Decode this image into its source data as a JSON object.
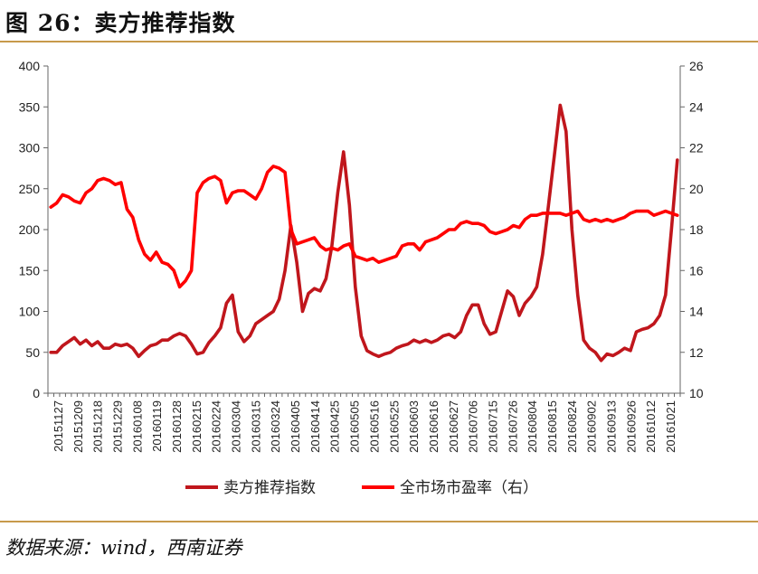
{
  "header": {
    "title": "图 26：卖方推荐指数"
  },
  "footer": {
    "source": "数据来源：wind，西南证券"
  },
  "colors": {
    "series1": "#c0161c",
    "series2": "#ff0000",
    "rule": "#c79a4b",
    "axis": "#666666"
  },
  "chart_data": {
    "type": "line",
    "title": "",
    "legend_position": "bottom",
    "grid": false,
    "x_tick_labels": [
      "20151127",
      "20151209",
      "20151218",
      "20151229",
      "20160108",
      "20160119",
      "20160128",
      "20160215",
      "20160224",
      "20160304",
      "20160315",
      "20160324",
      "20160405",
      "20160414",
      "20160425",
      "20160505",
      "20160516",
      "20160525",
      "20160603",
      "20160616",
      "20160627",
      "20160706",
      "20160715",
      "20160726",
      "20160804",
      "20160815",
      "20160824",
      "20160902",
      "20160913",
      "20160926",
      "20161012",
      "20161021"
    ],
    "y_left": {
      "min": 0,
      "max": 400,
      "ticks": [
        0,
        50,
        100,
        150,
        200,
        250,
        300,
        350,
        400
      ]
    },
    "y_right": {
      "min": 10,
      "max": 26,
      "ticks": [
        10,
        12,
        14,
        16,
        18,
        20,
        22,
        24,
        26
      ]
    },
    "series": [
      {
        "name": "卖方推荐指数",
        "axis": "left",
        "values": [
          [
            0,
            50
          ],
          [
            1,
            50
          ],
          [
            2,
            58
          ],
          [
            3,
            63
          ],
          [
            4,
            68
          ],
          [
            5,
            60
          ],
          [
            6,
            65
          ],
          [
            7,
            58
          ],
          [
            8,
            63
          ],
          [
            9,
            55
          ],
          [
            10,
            55
          ],
          [
            11,
            60
          ],
          [
            12,
            58
          ],
          [
            13,
            60
          ],
          [
            14,
            55
          ],
          [
            15,
            45
          ],
          [
            16,
            52
          ],
          [
            17,
            58
          ],
          [
            18,
            60
          ],
          [
            19,
            65
          ],
          [
            20,
            65
          ],
          [
            21,
            70
          ],
          [
            22,
            73
          ],
          [
            23,
            70
          ],
          [
            24,
            60
          ],
          [
            25,
            48
          ],
          [
            26,
            50
          ],
          [
            27,
            62
          ],
          [
            28,
            70
          ],
          [
            29,
            80
          ],
          [
            30,
            110
          ],
          [
            31,
            120
          ],
          [
            32,
            75
          ],
          [
            33,
            63
          ],
          [
            34,
            70
          ],
          [
            35,
            85
          ],
          [
            36,
            90
          ],
          [
            37,
            95
          ],
          [
            38,
            100
          ],
          [
            39,
            115
          ],
          [
            40,
            150
          ],
          [
            41,
            205
          ],
          [
            42,
            160
          ],
          [
            43,
            100
          ],
          [
            44,
            122
          ],
          [
            45,
            128
          ],
          [
            46,
            125
          ],
          [
            47,
            140
          ],
          [
            48,
            180
          ],
          [
            49,
            245
          ],
          [
            50,
            295
          ],
          [
            51,
            230
          ],
          [
            52,
            130
          ],
          [
            53,
            70
          ],
          [
            54,
            52
          ],
          [
            55,
            48
          ],
          [
            56,
            45
          ],
          [
            57,
            48
          ],
          [
            58,
            50
          ],
          [
            59,
            55
          ],
          [
            60,
            58
          ],
          [
            61,
            60
          ],
          [
            62,
            65
          ],
          [
            63,
            62
          ],
          [
            64,
            65
          ],
          [
            65,
            62
          ],
          [
            66,
            65
          ],
          [
            67,
            70
          ],
          [
            68,
            72
          ],
          [
            69,
            68
          ],
          [
            70,
            75
          ],
          [
            71,
            95
          ],
          [
            72,
            108
          ],
          [
            73,
            108
          ],
          [
            74,
            85
          ],
          [
            75,
            72
          ],
          [
            76,
            75
          ],
          [
            77,
            100
          ],
          [
            78,
            125
          ],
          [
            79,
            118
          ],
          [
            80,
            95
          ],
          [
            81,
            110
          ],
          [
            82,
            118
          ],
          [
            83,
            130
          ],
          [
            84,
            170
          ],
          [
            85,
            230
          ],
          [
            86,
            290
          ],
          [
            87,
            352
          ],
          [
            88,
            320
          ],
          [
            89,
            200
          ],
          [
            90,
            120
          ],
          [
            91,
            65
          ],
          [
            92,
            55
          ],
          [
            93,
            50
          ],
          [
            94,
            40
          ],
          [
            95,
            48
          ],
          [
            96,
            46
          ],
          [
            97,
            50
          ],
          [
            98,
            55
          ],
          [
            99,
            52
          ],
          [
            100,
            75
          ],
          [
            101,
            78
          ],
          [
            102,
            80
          ],
          [
            103,
            85
          ],
          [
            104,
            95
          ],
          [
            105,
            120
          ],
          [
            106,
            200
          ],
          [
            107,
            285
          ]
        ]
      },
      {
        "name": "全市场市盈率（右）",
        "axis": "right",
        "values": [
          [
            0,
            19.1
          ],
          [
            1,
            19.3
          ],
          [
            2,
            19.7
          ],
          [
            3,
            19.6
          ],
          [
            4,
            19.4
          ],
          [
            5,
            19.3
          ],
          [
            6,
            19.8
          ],
          [
            7,
            20.0
          ],
          [
            8,
            20.4
          ],
          [
            9,
            20.5
          ],
          [
            10,
            20.4
          ],
          [
            11,
            20.2
          ],
          [
            12,
            20.3
          ],
          [
            13,
            19.0
          ],
          [
            14,
            18.6
          ],
          [
            15,
            17.5
          ],
          [
            16,
            16.8
          ],
          [
            17,
            16.5
          ],
          [
            18,
            16.9
          ],
          [
            19,
            16.4
          ],
          [
            20,
            16.3
          ],
          [
            21,
            16.0
          ],
          [
            22,
            15.2
          ],
          [
            23,
            15.5
          ],
          [
            24,
            16.0
          ],
          [
            25,
            19.8
          ],
          [
            26,
            20.3
          ],
          [
            27,
            20.5
          ],
          [
            28,
            20.6
          ],
          [
            29,
            20.4
          ],
          [
            30,
            19.3
          ],
          [
            31,
            19.8
          ],
          [
            32,
            19.9
          ],
          [
            33,
            19.9
          ],
          [
            34,
            19.7
          ],
          [
            35,
            19.5
          ],
          [
            36,
            20.0
          ],
          [
            37,
            20.8
          ],
          [
            38,
            21.1
          ],
          [
            39,
            21.0
          ],
          [
            40,
            20.8
          ],
          [
            41,
            18.0
          ],
          [
            42,
            17.3
          ],
          [
            43,
            17.4
          ],
          [
            44,
            17.5
          ],
          [
            45,
            17.6
          ],
          [
            46,
            17.2
          ],
          [
            47,
            17.0
          ],
          [
            48,
            17.1
          ],
          [
            49,
            17.0
          ],
          [
            50,
            17.2
          ],
          [
            51,
            17.3
          ],
          [
            52,
            16.7
          ],
          [
            53,
            16.6
          ],
          [
            54,
            16.5
          ],
          [
            55,
            16.6
          ],
          [
            56,
            16.4
          ],
          [
            57,
            16.5
          ],
          [
            58,
            16.6
          ],
          [
            59,
            16.7
          ],
          [
            60,
            17.2
          ],
          [
            61,
            17.3
          ],
          [
            62,
            17.3
          ],
          [
            63,
            17.0
          ],
          [
            64,
            17.4
          ],
          [
            65,
            17.5
          ],
          [
            66,
            17.6
          ],
          [
            67,
            17.8
          ],
          [
            68,
            18.0
          ],
          [
            69,
            18.0
          ],
          [
            70,
            18.3
          ],
          [
            71,
            18.4
          ],
          [
            72,
            18.3
          ],
          [
            73,
            18.3
          ],
          [
            74,
            18.2
          ],
          [
            75,
            17.9
          ],
          [
            76,
            17.8
          ],
          [
            77,
            17.9
          ],
          [
            78,
            18.0
          ],
          [
            79,
            18.2
          ],
          [
            80,
            18.1
          ],
          [
            81,
            18.5
          ],
          [
            82,
            18.7
          ],
          [
            83,
            18.7
          ],
          [
            84,
            18.8
          ],
          [
            85,
            18.8
          ],
          [
            86,
            18.8
          ],
          [
            87,
            18.8
          ],
          [
            88,
            18.7
          ],
          [
            89,
            18.8
          ],
          [
            90,
            18.9
          ],
          [
            91,
            18.5
          ],
          [
            92,
            18.4
          ],
          [
            93,
            18.5
          ],
          [
            94,
            18.4
          ],
          [
            95,
            18.5
          ],
          [
            96,
            18.4
          ],
          [
            97,
            18.5
          ],
          [
            98,
            18.6
          ],
          [
            99,
            18.8
          ],
          [
            100,
            18.9
          ],
          [
            101,
            18.9
          ],
          [
            102,
            18.9
          ],
          [
            103,
            18.7
          ],
          [
            104,
            18.8
          ],
          [
            105,
            18.9
          ],
          [
            106,
            18.8
          ],
          [
            107,
            18.7
          ]
        ]
      }
    ]
  }
}
